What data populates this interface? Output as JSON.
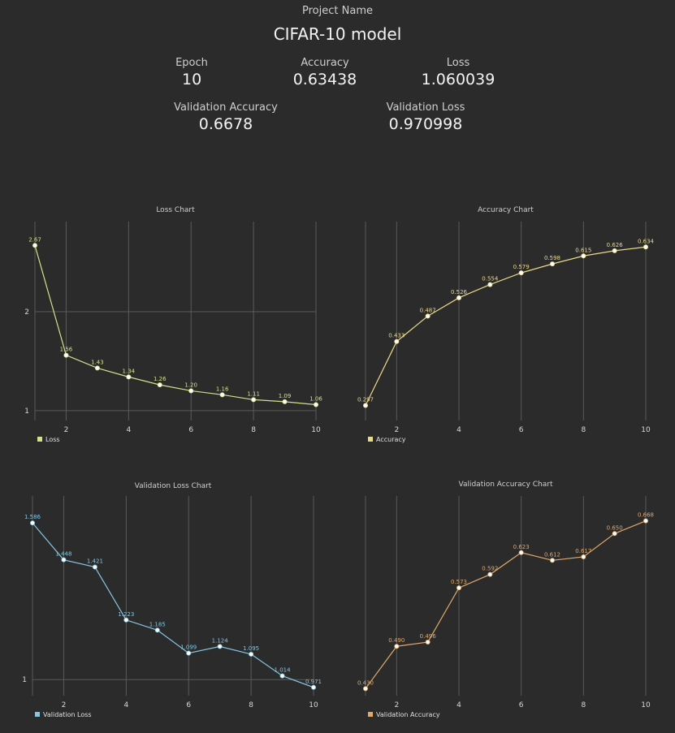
{
  "header": {
    "project_label": "Project Name",
    "project_name": "CIFAR-10 model",
    "metrics": {
      "epoch": {
        "label": "Epoch",
        "value": "10"
      },
      "accuracy": {
        "label": "Accuracy",
        "value": "0.63438"
      },
      "loss": {
        "label": "Loss",
        "value": "1.060039"
      },
      "val_accuracy": {
        "label": "Validation Accuracy",
        "value": "0.6678"
      },
      "val_loss": {
        "label": "Validation Loss",
        "value": "0.970998"
      }
    }
  },
  "chart_data": [
    {
      "id": "loss",
      "type": "line",
      "title": "Loss Chart",
      "x": [
        1,
        2,
        3,
        4,
        5,
        6,
        7,
        8,
        9,
        10
      ],
      "xticks": [
        2,
        4,
        6,
        8,
        10
      ],
      "yticks": [
        1,
        2
      ],
      "ylim": [
        0.9,
        2.73
      ],
      "grid": true,
      "legend_position": "bottom-left",
      "color": "#d4e08a",
      "series": [
        {
          "name": "Loss",
          "values": [
            2.67,
            1.56,
            1.43,
            1.34,
            1.26,
            1.2,
            1.16,
            1.11,
            1.09,
            1.06
          ],
          "labels": [
            "2.67",
            "1.56",
            "1.43",
            "1.34",
            "1.26",
            "1.20",
            "1.16",
            "1.11",
            "1.09",
            "1.06"
          ]
        }
      ]
    },
    {
      "id": "accuracy",
      "type": "line",
      "title": "Accuracy Chart",
      "x": [
        1,
        2,
        3,
        4,
        5,
        6,
        7,
        8,
        9,
        10
      ],
      "xticks": [
        2,
        4,
        6,
        8,
        10
      ],
      "yticks": [],
      "ylim": [
        0.265,
        0.65
      ],
      "grid": true,
      "legend_position": "bottom-left",
      "color": "#e9d98a",
      "series": [
        {
          "name": "Accuracy",
          "values": [
            0.297,
            0.433,
            0.487,
            0.526,
            0.554,
            0.579,
            0.598,
            0.615,
            0.626,
            0.634
          ],
          "labels": [
            "0.297",
            "0.433",
            "0.487",
            "0.526",
            "0.554",
            "0.579",
            "0.598",
            "0.615",
            "0.626",
            "0.634"
          ]
        }
      ]
    },
    {
      "id": "val_loss",
      "type": "line",
      "title": "Validation Loss Chart",
      "x": [
        1,
        2,
        3,
        4,
        5,
        6,
        7,
        8,
        9,
        10
      ],
      "xticks": [
        2,
        4,
        6,
        8,
        10
      ],
      "yticks": [
        1
      ],
      "ylim": [
        0.94,
        1.62
      ],
      "grid": true,
      "legend_position": "bottom-left",
      "color": "#86c5e0",
      "series": [
        {
          "name": "Validation Loss",
          "values": [
            1.586,
            1.448,
            1.421,
            1.223,
            1.185,
            1.099,
            1.124,
            1.095,
            1.014,
            0.971
          ],
          "labels": [
            "1.586",
            "1.448",
            "1.421",
            "1.223",
            "1.185",
            "1.099",
            "1.124",
            "1.095",
            "1.014",
            "0.971"
          ]
        }
      ]
    },
    {
      "id": "val_accuracy",
      "type": "line",
      "title": "Validation Accuracy Chart",
      "x": [
        1,
        2,
        3,
        4,
        5,
        6,
        7,
        8,
        9,
        10
      ],
      "xticks": [
        2,
        4,
        6,
        8,
        10
      ],
      "yticks": [],
      "ylim": [
        0.42,
        0.678
      ],
      "grid": true,
      "legend_position": "bottom-left",
      "color": "#e0a96a",
      "series": [
        {
          "name": "Validation Accuracy",
          "values": [
            0.43,
            0.49,
            0.496,
            0.573,
            0.592,
            0.623,
            0.612,
            0.617,
            0.65,
            0.668
          ],
          "labels": [
            "0.430",
            "0.490",
            "0.496",
            "0.573",
            "0.592",
            "0.623",
            "0.612",
            "0.617",
            "0.650",
            "0.668"
          ]
        }
      ]
    }
  ]
}
